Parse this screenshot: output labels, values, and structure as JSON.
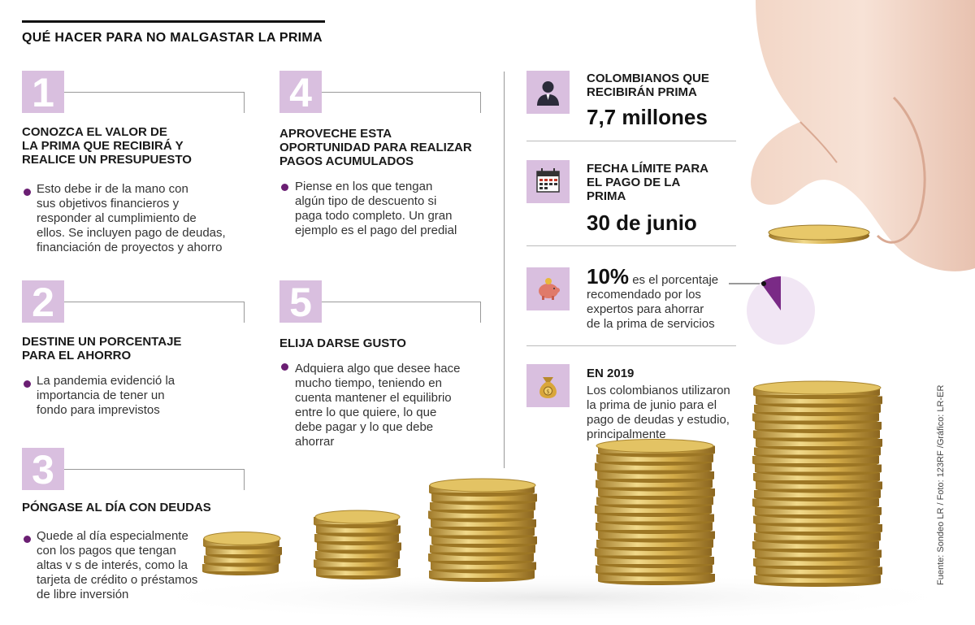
{
  "header": {
    "title": "QUÉ HACER PARA NO MALGASTAR LA PRIMA"
  },
  "steps": [
    {
      "number": "1",
      "heading_lines": [
        "CONOZCA EL VALOR DE",
        "LA PRIMA QUE RECIBIRÁ Y",
        "REALICE UN PRESUPUESTO"
      ],
      "body_lines": [
        "Esto debe ir de la mano con",
        "sus objetivos financieros y",
        "responder al cumplimiento de",
        "ellos. Se incluyen pago de deudas,",
        "financiación de proyectos y ahorro"
      ]
    },
    {
      "number": "2",
      "heading_lines": [
        "DESTINE UN PORCENTAJE",
        "PARA EL AHORRO"
      ],
      "body_lines": [
        "La pandemia evidenció la",
        "importancia de tener un",
        "fondo para imprevistos"
      ]
    },
    {
      "number": "3",
      "heading_lines": [
        "PÓNGASE AL DÍA CON DEUDAS"
      ],
      "body_lines": [
        "Quede al día especialmente",
        "con los pagos que tengan",
        "altas v s de interés, como la",
        "tarjeta de crédito o préstamos",
        "de libre inversión"
      ]
    },
    {
      "number": "4",
      "heading_lines": [
        "APROVECHE ESTA",
        "OPORTUNIDAD PARA REALIZAR",
        "PAGOS ACUMULADOS"
      ],
      "body_lines": [
        "Piense en los que tengan",
        "algún tipo de descuento si",
        "paga todo completo. Un gran",
        "ejemplo es el pago del predial"
      ]
    },
    {
      "number": "5",
      "heading_lines": [
        "ELIJA DARSE GUSTO"
      ],
      "body_lines": [
        "Adquiera algo que desee hace",
        "mucho tiempo, teniendo en",
        "cuenta mantener el equilibrio",
        "entre lo que quiere, lo que",
        "debe pagar y lo que debe",
        "ahorrar"
      ]
    }
  ],
  "facts": {
    "recipients": {
      "heading_lines": [
        "COLOMBIANOS QUE",
        "RECIBIRÁN PRIMA"
      ],
      "value": "7,7 millones",
      "icon": "person-icon"
    },
    "deadline": {
      "heading_lines": [
        "FECHA LÍMITE PARA",
        "EL PAGO DE LA",
        "PRIMA"
      ],
      "value": "30 de junio",
      "icon": "calendar-icon"
    },
    "savings": {
      "percent": "10%",
      "text_lines": [
        "es el porcentaje",
        "recomendado por los",
        "expertos para ahorrar",
        "de la prima de servicios"
      ],
      "icon": "piggy-bank-icon",
      "share": 0.1
    },
    "year2019": {
      "heading": "EN 2019",
      "body_lines": [
        "Los colombianos utilizaron",
        "la prima de junio para el",
        "pago de deudas y estudio,",
        "principalmente"
      ],
      "icon": "money-bag-icon"
    }
  },
  "credit": "Fuente: Sondeo LR / Foto: 123RF /Gráfico: LR-ER",
  "colors": {
    "accent_box": "#d9bfdf",
    "bullet": "#6b1f73",
    "pie_fill": "#f1e6f4",
    "pie_slice": "#7a2a86",
    "coin": "#d6b04c"
  }
}
